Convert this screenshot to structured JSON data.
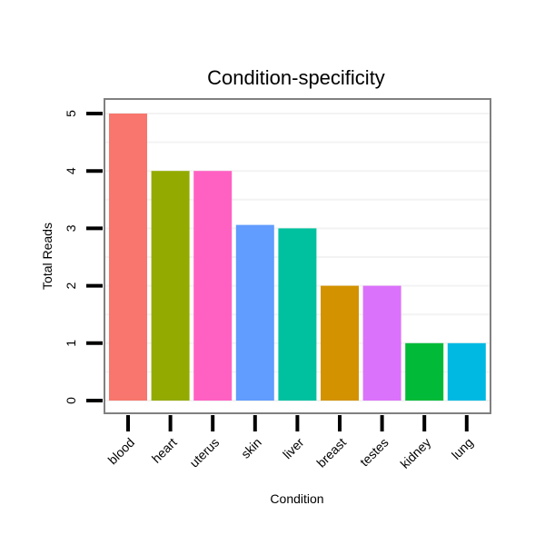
{
  "chart_data": {
    "type": "bar",
    "title": "Condition-specificity",
    "xlabel": "Condition",
    "ylabel": "Total Reads",
    "categories": [
      "blood",
      "heart",
      "uterus",
      "skin",
      "liver",
      "breast",
      "testes",
      "kidney",
      "lung"
    ],
    "values": [
      5,
      4,
      4,
      3.06,
      3,
      2,
      2,
      1,
      1
    ],
    "colors": [
      "#F8766D",
      "#93AA00",
      "#FF61C3",
      "#619CFF",
      "#00C19F",
      "#D39200",
      "#DB72FB",
      "#00BA38",
      "#00B9E3"
    ],
    "yticks": [
      "0",
      "1",
      "2",
      "3",
      "4",
      "5"
    ],
    "ylim": [
      0,
      5
    ],
    "grid": true,
    "legend": "none"
  }
}
